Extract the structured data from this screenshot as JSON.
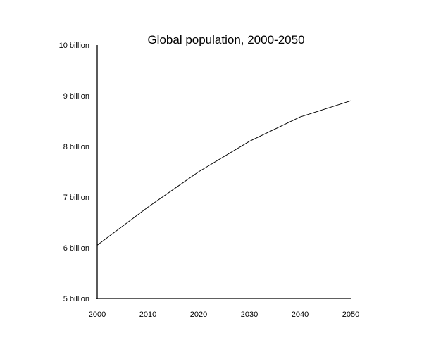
{
  "chart_data": {
    "type": "line",
    "title": "Global population, 2000-2050",
    "xlabel": "",
    "ylabel": "",
    "x": [
      2000,
      2010,
      2020,
      2030,
      2040,
      2050
    ],
    "x_tick_labels": [
      "2000",
      "2010",
      "2020",
      "2030",
      "2040",
      "2050"
    ],
    "y_tick_values": [
      5,
      6,
      7,
      8,
      9,
      10
    ],
    "y_tick_labels": [
      "5 billion",
      "6 billion",
      "7 billion",
      "8 billion",
      "9 billion",
      "10 billion"
    ],
    "xlim": [
      2000,
      2050
    ],
    "ylim": [
      5,
      10
    ],
    "series": [
      {
        "values": [
          6.05,
          6.8,
          7.5,
          8.1,
          8.58,
          8.9
        ],
        "color": "#000000"
      }
    ],
    "grid": false,
    "legend": "none"
  }
}
